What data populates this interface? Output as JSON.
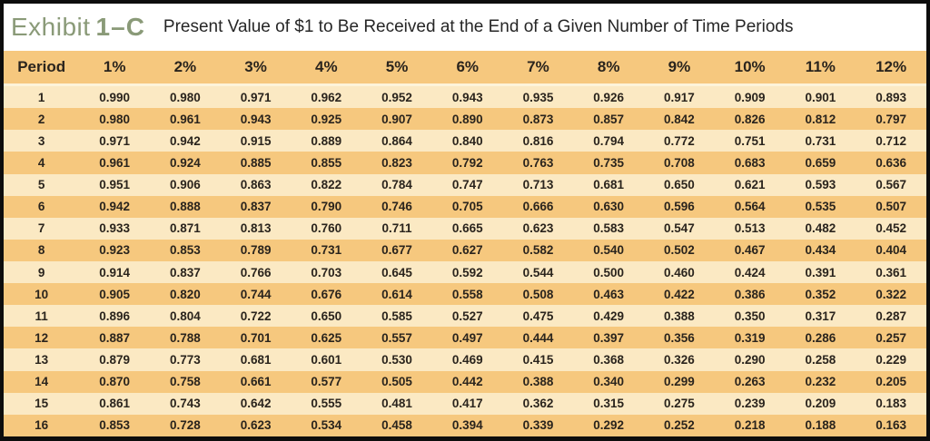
{
  "exhibit": {
    "label": "Exhibit",
    "number": "1–C",
    "title": "Present Value of $1 to Be Received at the End of a Given Number of Time Periods"
  },
  "colors": {
    "frame": "#0d0d0d",
    "title_green": "#8a9a78",
    "row_light": "#fbe9c3",
    "row_gold": "#f6c87e",
    "text_dark": "#2a241d"
  },
  "chart_data": {
    "type": "table",
    "title": "Present Value of $1 to Be Received at the End of a Given Number of Time Periods",
    "columns": [
      "Period",
      "1%",
      "2%",
      "3%",
      "4%",
      "5%",
      "6%",
      "7%",
      "8%",
      "9%",
      "10%",
      "11%",
      "12%"
    ],
    "rows": [
      [
        "1",
        "0.990",
        "0.980",
        "0.971",
        "0.962",
        "0.952",
        "0.943",
        "0.935",
        "0.926",
        "0.917",
        "0.909",
        "0.901",
        "0.893"
      ],
      [
        "2",
        "0.980",
        "0.961",
        "0.943",
        "0.925",
        "0.907",
        "0.890",
        "0.873",
        "0.857",
        "0.842",
        "0.826",
        "0.812",
        "0.797"
      ],
      [
        "3",
        "0.971",
        "0.942",
        "0.915",
        "0.889",
        "0.864",
        "0.840",
        "0.816",
        "0.794",
        "0.772",
        "0.751",
        "0.731",
        "0.712"
      ],
      [
        "4",
        "0.961",
        "0.924",
        "0.885",
        "0.855",
        "0.823",
        "0.792",
        "0.763",
        "0.735",
        "0.708",
        "0.683",
        "0.659",
        "0.636"
      ],
      [
        "5",
        "0.951",
        "0.906",
        "0.863",
        "0.822",
        "0.784",
        "0.747",
        "0.713",
        "0.681",
        "0.650",
        "0.621",
        "0.593",
        "0.567"
      ],
      [
        "6",
        "0.942",
        "0.888",
        "0.837",
        "0.790",
        "0.746",
        "0.705",
        "0.666",
        "0.630",
        "0.596",
        "0.564",
        "0.535",
        "0.507"
      ],
      [
        "7",
        "0.933",
        "0.871",
        "0.813",
        "0.760",
        "0.711",
        "0.665",
        "0.623",
        "0.583",
        "0.547",
        "0.513",
        "0.482",
        "0.452"
      ],
      [
        "8",
        "0.923",
        "0.853",
        "0.789",
        "0.731",
        "0.677",
        "0.627",
        "0.582",
        "0.540",
        "0.502",
        "0.467",
        "0.434",
        "0.404"
      ],
      [
        "9",
        "0.914",
        "0.837",
        "0.766",
        "0.703",
        "0.645",
        "0.592",
        "0.544",
        "0.500",
        "0.460",
        "0.424",
        "0.391",
        "0.361"
      ],
      [
        "10",
        "0.905",
        "0.820",
        "0.744",
        "0.676",
        "0.614",
        "0.558",
        "0.508",
        "0.463",
        "0.422",
        "0.386",
        "0.352",
        "0.322"
      ],
      [
        "11",
        "0.896",
        "0.804",
        "0.722",
        "0.650",
        "0.585",
        "0.527",
        "0.475",
        "0.429",
        "0.388",
        "0.350",
        "0.317",
        "0.287"
      ],
      [
        "12",
        "0.887",
        "0.788",
        "0.701",
        "0.625",
        "0.557",
        "0.497",
        "0.444",
        "0.397",
        "0.356",
        "0.319",
        "0.286",
        "0.257"
      ],
      [
        "13",
        "0.879",
        "0.773",
        "0.681",
        "0.601",
        "0.530",
        "0.469",
        "0.415",
        "0.368",
        "0.326",
        "0.290",
        "0.258",
        "0.229"
      ],
      [
        "14",
        "0.870",
        "0.758",
        "0.661",
        "0.577",
        "0.505",
        "0.442",
        "0.388",
        "0.340",
        "0.299",
        "0.263",
        "0.232",
        "0.205"
      ],
      [
        "15",
        "0.861",
        "0.743",
        "0.642",
        "0.555",
        "0.481",
        "0.417",
        "0.362",
        "0.315",
        "0.275",
        "0.239",
        "0.209",
        "0.183"
      ],
      [
        "16",
        "0.853",
        "0.728",
        "0.623",
        "0.534",
        "0.458",
        "0.394",
        "0.339",
        "0.292",
        "0.252",
        "0.218",
        "0.188",
        "0.163"
      ]
    ]
  }
}
